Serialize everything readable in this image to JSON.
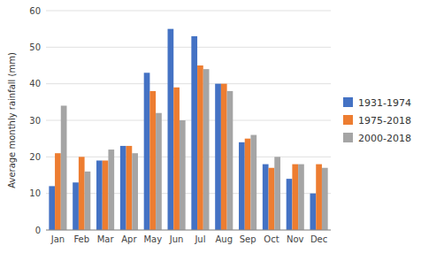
{
  "chart_data": {
    "type": "bar",
    "ylabel": "Average monthly rainfall (mm)",
    "categories": [
      "Jan",
      "Feb",
      "Mar",
      "Apr",
      "May",
      "Jun",
      "Jul",
      "Aug",
      "Sep",
      "Oct",
      "Nov",
      "Dec"
    ],
    "series": [
      {
        "name": "1931-1974",
        "color": "#4472C4",
        "values": [
          12,
          13,
          19,
          23,
          43,
          55,
          53,
          40,
          24,
          18,
          14,
          10
        ]
      },
      {
        "name": "1975-2018",
        "color": "#ED7D31",
        "values": [
          21,
          20,
          19,
          23,
          38,
          39,
          45,
          40,
          25,
          17,
          18,
          18
        ]
      },
      {
        "name": "2000-2018",
        "color": "#A5A5A5",
        "values": [
          34,
          16,
          22,
          21,
          32,
          30,
          44,
          38,
          26,
          20,
          18,
          17
        ]
      }
    ],
    "ylim": [
      0,
      60
    ],
    "yticks": [
      0,
      10,
      20,
      30,
      40,
      50,
      60
    ],
    "grid": true,
    "legend": "right"
  }
}
